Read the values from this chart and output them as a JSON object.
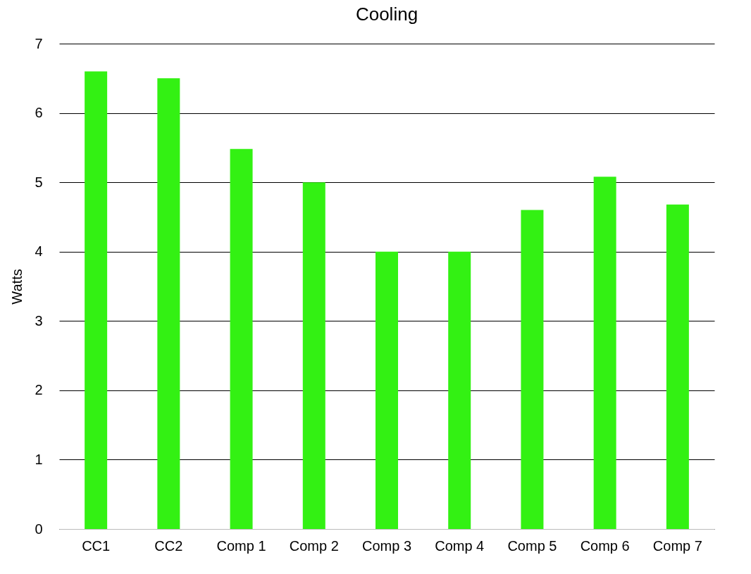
{
  "chart_data": {
    "type": "bar",
    "title": "Cooling",
    "ylabel": "Watts",
    "categories": [
      "CC1",
      "CC2",
      "Comp 1",
      "Comp 2",
      "Comp 3",
      "Comp 4",
      "Comp 5",
      "Comp 6",
      "Comp 7"
    ],
    "values": [
      6.6,
      6.5,
      5.48,
      5.0,
      4.0,
      4.0,
      4.6,
      5.08,
      4.68
    ],
    "color": "#33f113",
    "ylim": [
      0,
      7
    ],
    "yticks": [
      0,
      1,
      2,
      3,
      4,
      5,
      6,
      7
    ],
    "grid": "y"
  }
}
